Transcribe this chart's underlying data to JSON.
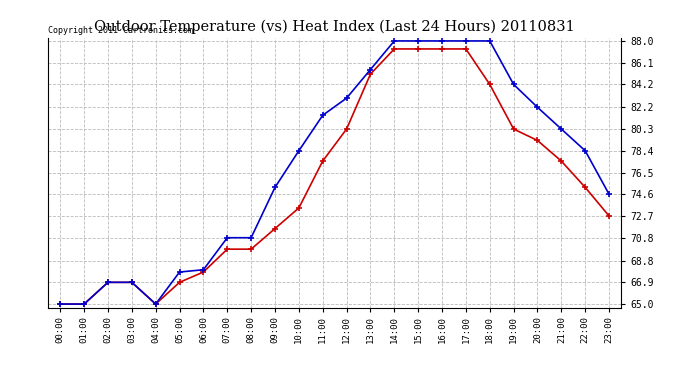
{
  "title": "Outdoor Temperature (vs) Heat Index (Last 24 Hours) 20110831",
  "copyright": "Copyright 2011 Cartronics.com",
  "background_color": "#ffffff",
  "grid_color": "#bbbbbb",
  "hours": [
    "00:00",
    "01:00",
    "02:00",
    "03:00",
    "04:00",
    "05:00",
    "06:00",
    "07:00",
    "08:00",
    "09:00",
    "10:00",
    "11:00",
    "12:00",
    "13:00",
    "14:00",
    "15:00",
    "16:00",
    "17:00",
    "18:00",
    "19:00",
    "20:00",
    "21:00",
    "22:00",
    "23:00"
  ],
  "temp": [
    65.0,
    65.0,
    66.9,
    66.9,
    65.0,
    66.9,
    67.8,
    69.8,
    69.8,
    71.6,
    73.4,
    77.5,
    80.3,
    85.1,
    87.3,
    87.3,
    87.3,
    87.3,
    84.2,
    80.3,
    79.3,
    77.5,
    75.2,
    72.7
  ],
  "heat_index": [
    65.0,
    65.0,
    66.9,
    66.9,
    65.0,
    67.8,
    68.0,
    70.8,
    70.8,
    75.2,
    78.4,
    81.5,
    83.0,
    85.5,
    88.0,
    88.0,
    88.0,
    88.0,
    88.0,
    84.2,
    82.2,
    80.3,
    78.4,
    74.6
  ],
  "temp_color": "#cc0000",
  "heat_index_color": "#0000cc",
  "ylim_min": 65.0,
  "ylim_max": 88.0,
  "ytick_vals": [
    65.0,
    66.9,
    68.8,
    70.8,
    72.7,
    74.6,
    76.5,
    78.4,
    80.3,
    82.2,
    84.2,
    86.1,
    88.0
  ],
  "ytick_labels": [
    "65.0",
    "66.9",
    "68.8",
    "70.8",
    "72.7",
    "74.6",
    "76.5",
    "78.4",
    "80.3",
    "82.2",
    "84.2",
    "86.1",
    "88.0"
  ]
}
